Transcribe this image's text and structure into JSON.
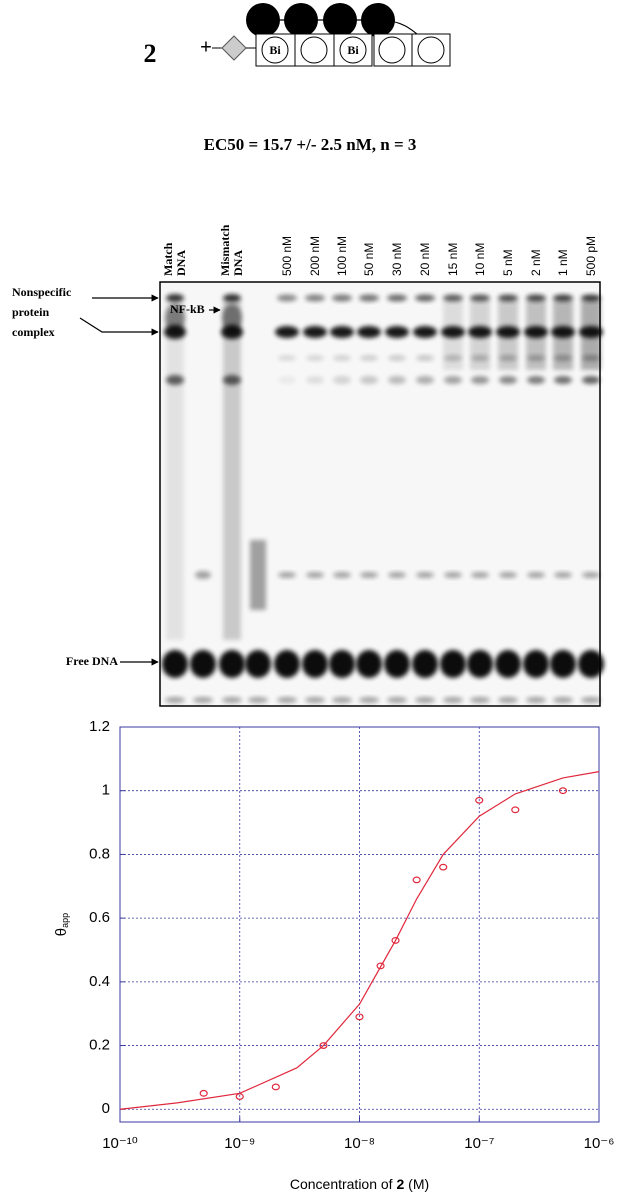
{
  "figure": {
    "compound_label": "2",
    "schematic": {
      "charge": "+",
      "units": [
        "Bi",
        "Bi"
      ]
    },
    "ec50": "EC50 = 15.7 +/- 2.5 nM, n = 3"
  },
  "gel": {
    "control_labels": [
      [
        "Match",
        "DNA"
      ],
      [
        "Mismatch",
        "DNA"
      ]
    ],
    "concentration_labels": [
      "500 nM",
      "200 nM",
      "100 nM",
      "50 nM",
      "30 nM",
      "20 nM",
      "15 nM",
      "10 nM",
      "5 nM",
      "2 nM",
      "1 nM",
      "500 pM"
    ],
    "annotations": {
      "nonspecific": [
        "Nonspecific",
        "protein",
        "complex"
      ],
      "nfkb": "NF-kB",
      "free_dna": "Free DNA"
    }
  },
  "chart_data": {
    "type": "scatter",
    "x": [
      5e-10,
      1e-09,
      2e-09,
      5e-09,
      1e-08,
      1.5e-08,
      2e-08,
      3e-08,
      5e-08,
      1e-07,
      2e-07,
      5e-07
    ],
    "values": [
      0.05,
      0.04,
      0.07,
      0.2,
      0.29,
      0.45,
      0.53,
      0.72,
      0.76,
      0.97,
      0.94,
      1.0
    ],
    "fit": {
      "x": [
        1e-10,
        3e-10,
        1e-09,
        3e-09,
        5e-09,
        1e-08,
        2e-08,
        3e-08,
        5e-08,
        1e-07,
        2e-07,
        5e-07,
        1e-06
      ],
      "values": [
        0.0,
        0.02,
        0.05,
        0.13,
        0.2,
        0.33,
        0.53,
        0.66,
        0.8,
        0.92,
        0.99,
        1.04,
        1.06
      ]
    },
    "color": "#e0283c",
    "axis_color": "#3a3aa0",
    "xlabel": [
      "Concentration of ",
      "2",
      " (M)"
    ],
    "ylabel": {
      "symbol": "θ",
      "subscript": "app"
    },
    "xlog": true,
    "grid": true,
    "xlim": [
      1e-10,
      1e-06
    ],
    "xticks": [
      {
        "value": 1e-10,
        "label": "10⁻¹⁰"
      },
      {
        "value": 1e-09,
        "label": "10⁻⁹"
      },
      {
        "value": 1e-08,
        "label": "10⁻⁸"
      },
      {
        "value": 1e-07,
        "label": "10⁻⁷"
      },
      {
        "value": 1e-06,
        "label": "10⁻⁶"
      }
    ],
    "ylim": [
      -0.04,
      1.2
    ],
    "yticks": [
      0,
      0.2,
      0.4,
      0.6,
      0.8,
      1,
      1.2
    ]
  }
}
